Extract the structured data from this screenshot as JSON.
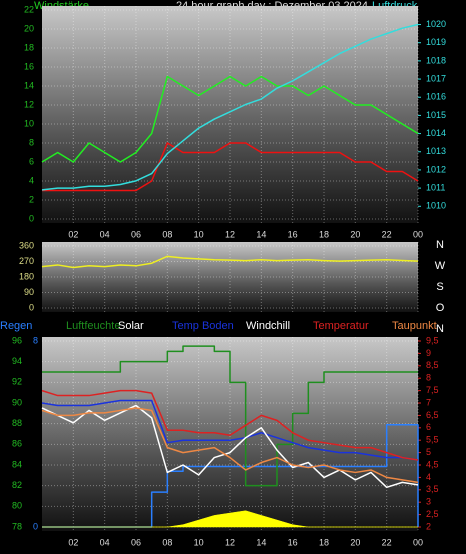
{
  "chart_data": [
    {
      "type": "line",
      "title": "24 hour graph day : Dezember 03 2024",
      "ylabel": "Windstärke",
      "y2label": "Luftdruck",
      "x": [
        0,
        1,
        2,
        3,
        4,
        5,
        6,
        7,
        8,
        9,
        10,
        11,
        12,
        13,
        14,
        15,
        16,
        17,
        18,
        19,
        20,
        21,
        22,
        23,
        24
      ],
      "xlim": [
        0,
        24
      ],
      "xticks": [
        {
          "value": 2,
          "label": "02"
        },
        {
          "value": 4,
          "label": "04"
        },
        {
          "value": 6,
          "label": "06"
        },
        {
          "value": 8,
          "label": "08"
        },
        10,
        12,
        14,
        16,
        18,
        20,
        22,
        {
          "value": 24,
          "label": "00"
        }
      ],
      "ylim": [
        0,
        22
      ],
      "yticks": [
        0,
        2,
        4,
        6,
        8,
        10,
        12,
        14,
        16,
        18,
        20,
        22
      ],
      "y2lim": [
        1009.3,
        1020.8
      ],
      "y2ticks": [
        1010,
        1011,
        1012,
        1013,
        1014,
        1015,
        1016,
        1017,
        1018,
        1019,
        1020
      ],
      "grid": true,
      "series": [
        {
          "color": "#22ee22",
          "values": [
            6,
            7,
            6,
            8,
            7,
            6,
            7,
            9,
            15,
            14,
            13,
            14,
            15,
            14,
            15,
            14,
            14,
            13,
            14,
            13,
            12,
            12,
            11,
            10,
            9
          ]
        },
        {
          "color": "#ee1111",
          "values": [
            3,
            3,
            3,
            3,
            3,
            3,
            3,
            4,
            8,
            7,
            7,
            7,
            8,
            8,
            7,
            7,
            7,
            7,
            7,
            7,
            6,
            6,
            5,
            5,
            4
          ]
        },
        {
          "color": "#33dddd",
          "axis": "y2",
          "values": [
            1010.9,
            1011,
            1011,
            1011.1,
            1011.1,
            1011.2,
            1011.4,
            1011.8,
            1012.9,
            1013.6,
            1014.3,
            1014.8,
            1015.2,
            1015.6,
            1015.9,
            1016.5,
            1016.9,
            1017.4,
            1017.9,
            1018.4,
            1018.8,
            1019.2,
            1019.5,
            1019.8,
            1020
          ]
        }
      ]
    },
    {
      "type": "line",
      "x": [
        0,
        1,
        2,
        3,
        4,
        5,
        6,
        7,
        8,
        9,
        10,
        11,
        12,
        13,
        14,
        15,
        16,
        17,
        18,
        19,
        20,
        21,
        22,
        23,
        24
      ],
      "xlim": [
        0,
        24
      ],
      "ylim": [
        0,
        360
      ],
      "yticks": [
        0,
        90,
        180,
        270,
        360
      ],
      "grid": true,
      "direction_labels": [
        "N",
        "W",
        "S",
        "O",
        "N"
      ],
      "series": [
        {
          "color": "#eeee22",
          "values": [
            240,
            250,
            235,
            245,
            240,
            250,
            245,
            260,
            300,
            290,
            285,
            280,
            278,
            275,
            280,
            275,
            278,
            280,
            275,
            272,
            275,
            278,
            280,
            276,
            272
          ]
        }
      ]
    },
    {
      "type": "line",
      "x": [
        0,
        1,
        2,
        3,
        4,
        5,
        6,
        7,
        8,
        9,
        10,
        11,
        12,
        13,
        14,
        15,
        16,
        17,
        18,
        19,
        20,
        21,
        22,
        23,
        24
      ],
      "xlim": [
        0,
        24
      ],
      "xticks": [
        {
          "value": 2,
          "label": "02"
        },
        {
          "value": 4,
          "label": "04"
        },
        {
          "value": 6,
          "label": "06"
        },
        {
          "value": 8,
          "label": "08"
        },
        10,
        12,
        14,
        16,
        18,
        20,
        22,
        {
          "value": 24,
          "label": "00"
        }
      ],
      "ylim": [
        78,
        96
      ],
      "yticks": [
        78,
        80,
        82,
        84,
        86,
        88,
        90,
        92,
        94,
        96
      ],
      "y2lim": [
        2,
        9.5
      ],
      "y2ticks": [
        2,
        {
          "value": 2.5,
          "label": "2,5"
        },
        3,
        {
          "value": 3.5,
          "label": "3,5"
        },
        4,
        {
          "value": 4.5,
          "label": "4,5"
        },
        5,
        {
          "value": 5.5,
          "label": "5,5"
        },
        6,
        {
          "value": 6.5,
          "label": "6,5"
        },
        7,
        {
          "value": 7.5,
          "label": "7,5"
        },
        8,
        {
          "value": 8.5,
          "label": "8,5"
        },
        9,
        {
          "value": 9.5,
          "label": "9,5"
        }
      ],
      "raintlim": [
        0,
        8
      ],
      "rainticks": [
        0,
        8
      ],
      "grid": true,
      "series": [
        {
          "name": "Regen",
          "color": "#2a7fff",
          "axis": "rain",
          "step": true,
          "values": [
            0,
            0,
            0,
            0,
            0,
            0,
            0,
            1.5,
            2.4,
            2.6,
            2.6,
            2.6,
            2.6,
            2.6,
            2.6,
            2.6,
            2.6,
            2.6,
            2.6,
            2.6,
            2.6,
            2.6,
            4.4,
            4.4,
            0
          ]
        },
        {
          "name": "Luftfeuchte",
          "color": "#1f8f1f",
          "step": true,
          "values": [
            93,
            93,
            93,
            93,
            93,
            94,
            94,
            94,
            95,
            95.5,
            95.5,
            95,
            92,
            82,
            82,
            86,
            89,
            92,
            93,
            93,
            93,
            93,
            93,
            93,
            93
          ]
        },
        {
          "name": "Solar",
          "color": "#ffff00",
          "label_color": "#ffffff",
          "axis": "rain",
          "fill": true,
          "values": [
            0,
            0,
            0,
            0,
            0,
            0,
            0,
            0,
            0,
            0.1,
            0.3,
            0.5,
            0.6,
            0.7,
            0.5,
            0.3,
            0.1,
            0,
            0,
            0,
            0,
            0,
            0,
            0,
            0
          ]
        },
        {
          "name": "Temp Boden",
          "color": "#1a33dd",
          "axis": "y2",
          "values": [
            7,
            6.9,
            6.9,
            6.9,
            7,
            7.1,
            7.1,
            7.1,
            5.4,
            5.5,
            5.5,
            5.5,
            5.5,
            5.6,
            5.8,
            5.6,
            5.4,
            5.2,
            5.1,
            5,
            5,
            4.9,
            4.8,
            4.8,
            4.7
          ]
        },
        {
          "name": "Windchill",
          "color": "#ffffff",
          "axis": "y2",
          "values": [
            6.8,
            6.5,
            6.2,
            6.7,
            6.3,
            6.6,
            6.9,
            6.4,
            4.2,
            4.5,
            4.1,
            4.8,
            5,
            5.6,
            6,
            5.1,
            4.4,
            4.6,
            4,
            4.3,
            3.9,
            4.2,
            3.6,
            3.8,
            3.7
          ]
        },
        {
          "name": "Temperatur",
          "color": "#dd2222",
          "axis": "y2",
          "values": [
            7.5,
            7.3,
            7.3,
            7.3,
            7.4,
            7.5,
            7.5,
            7.4,
            5.9,
            5.9,
            5.8,
            5.8,
            5.7,
            6.1,
            6.5,
            6.3,
            5.8,
            5.5,
            5.4,
            5.3,
            5.2,
            5.2,
            5,
            4.8,
            4.7
          ]
        },
        {
          "name": "Taupunkt",
          "color": "#ee8844",
          "axis": "y2",
          "values": [
            6.7,
            6.5,
            6.5,
            6.6,
            6.6,
            6.7,
            6.8,
            6.7,
            5.2,
            5,
            5.1,
            5.2,
            4.8,
            4.3,
            4.6,
            4.8,
            4.5,
            4.4,
            4.5,
            4.3,
            4.2,
            4.3,
            4,
            3.9,
            3.8
          ]
        }
      ]
    }
  ]
}
